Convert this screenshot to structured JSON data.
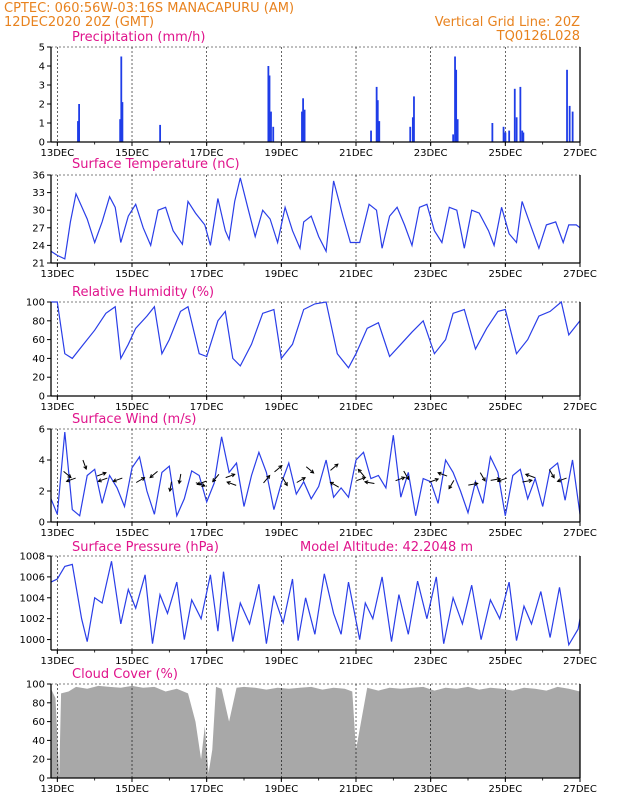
{
  "header": {
    "line1_left": "CPTEC:  060:56W-03:16S  MANACAPURU (AM)",
    "line2_left": "12DEC2020 20Z (GMT)",
    "line2_right": "Vertical Grid Line: 20Z",
    "line3_right": "TQ0126L028"
  },
  "colors": {
    "header": "#e8821e",
    "panel_title": "#e0148c",
    "series": "#2a3ee8",
    "cloud": "#a8a8a8"
  },
  "chart_data": [
    {
      "type": "bar",
      "title": "Precipitation (mm/h)",
      "ylim": [
        0,
        5
      ],
      "yticks": [
        0,
        1,
        2,
        3,
        4,
        5
      ],
      "xticks": [
        "13DEC",
        "15DEC",
        "17DEC",
        "19DEC",
        "21DEC",
        "23DEC",
        "25DEC",
        "27DEC"
      ],
      "x_start_day": 12.83,
      "x_end_day": 27.0,
      "values_hourly_note": "bars at day positions",
      "bars": [
        [
          13.55,
          1.1
        ],
        [
          13.58,
          2.0
        ],
        [
          14.68,
          1.2
        ],
        [
          14.71,
          4.5
        ],
        [
          14.74,
          2.1
        ],
        [
          15.75,
          0.9
        ],
        [
          18.65,
          4.0
        ],
        [
          18.68,
          3.5
        ],
        [
          18.72,
          1.6
        ],
        [
          18.78,
          0.8
        ],
        [
          19.55,
          1.6
        ],
        [
          19.58,
          2.3
        ],
        [
          19.62,
          1.7
        ],
        [
          21.4,
          0.6
        ],
        [
          21.55,
          2.9
        ],
        [
          21.58,
          2.2
        ],
        [
          21.62,
          1.1
        ],
        [
          22.45,
          0.8
        ],
        [
          22.52,
          1.3
        ],
        [
          22.55,
          2.4
        ],
        [
          23.6,
          0.4
        ],
        [
          23.65,
          4.5
        ],
        [
          23.68,
          3.8
        ],
        [
          23.72,
          1.2
        ],
        [
          24.65,
          1.0
        ],
        [
          24.95,
          0.8
        ],
        [
          25.0,
          0.5
        ],
        [
          25.1,
          0.6
        ],
        [
          25.25,
          2.8
        ],
        [
          25.3,
          1.3
        ],
        [
          25.4,
          2.9
        ],
        [
          25.45,
          0.6
        ],
        [
          25.48,
          0.5
        ],
        [
          26.65,
          3.8
        ],
        [
          26.72,
          1.9
        ],
        [
          26.8,
          1.6
        ]
      ]
    },
    {
      "type": "line",
      "title": "Surface Temperature (nC)",
      "ylim": [
        21,
        36
      ],
      "yticks": [
        21,
        24,
        27,
        30,
        33,
        36
      ],
      "xticks": [
        "13DEC",
        "15DEC",
        "17DEC",
        "19DEC",
        "21DEC",
        "23DEC",
        "25DEC",
        "27DEC"
      ],
      "x": [
        12.83,
        13.0,
        13.2,
        13.35,
        13.5,
        13.8,
        14.0,
        14.2,
        14.4,
        14.55,
        14.7,
        14.9,
        15.1,
        15.3,
        15.5,
        15.7,
        15.9,
        16.1,
        16.35,
        16.5,
        16.7,
        16.95,
        17.1,
        17.3,
        17.5,
        17.6,
        17.75,
        17.9,
        18.1,
        18.3,
        18.5,
        18.7,
        18.9,
        19.1,
        19.3,
        19.5,
        19.6,
        19.8,
        20.0,
        20.2,
        20.4,
        20.65,
        20.85,
        21.1,
        21.35,
        21.55,
        21.7,
        21.9,
        22.1,
        22.3,
        22.5,
        22.7,
        22.9,
        23.1,
        23.3,
        23.5,
        23.7,
        23.9,
        24.1,
        24.3,
        24.55,
        24.7,
        24.9,
        25.1,
        25.3,
        25.45,
        25.7,
        25.9,
        26.1,
        26.35,
        26.55,
        26.7,
        26.9,
        27.0
      ],
      "y": [
        23.0,
        22.3,
        21.7,
        28.0,
        32.8,
        28.5,
        24.5,
        28.0,
        32.3,
        30.5,
        24.5,
        29.0,
        31.0,
        27.0,
        24.0,
        30.0,
        30.5,
        26.5,
        24.2,
        31.5,
        29.5,
        27.5,
        24.0,
        32.0,
        26.5,
        25.0,
        31.5,
        35.5,
        30.5,
        25.5,
        30.0,
        28.5,
        24.5,
        30.5,
        26.5,
        23.5,
        28.0,
        29.0,
        25.5,
        23.0,
        35.0,
        29.0,
        24.5,
        24.5,
        31.0,
        30.0,
        23.5,
        29.0,
        30.5,
        27.5,
        24.0,
        30.5,
        31.0,
        26.5,
        24.5,
        30.5,
        30.0,
        23.5,
        30.0,
        29.5,
        26.5,
        24.0,
        30.5,
        26.0,
        24.5,
        31.5,
        27.0,
        23.5,
        27.5,
        28.0,
        24.5,
        27.5,
        27.5,
        27.0
      ]
    },
    {
      "type": "line",
      "title": "Relative Humidity (%)",
      "ylim": [
        0,
        100
      ],
      "yticks": [
        0,
        20,
        40,
        60,
        80,
        100
      ],
      "xticks": [
        "13DEC",
        "15DEC",
        "17DEC",
        "19DEC",
        "21DEC",
        "23DEC",
        "25DEC",
        "27DEC"
      ],
      "x": [
        12.83,
        13.0,
        13.2,
        13.4,
        13.7,
        14.0,
        14.3,
        14.55,
        14.7,
        14.9,
        15.1,
        15.4,
        15.6,
        15.8,
        16.0,
        16.3,
        16.5,
        16.8,
        17.0,
        17.3,
        17.5,
        17.7,
        17.9,
        18.2,
        18.5,
        18.8,
        19.0,
        19.3,
        19.6,
        19.9,
        20.2,
        20.5,
        20.8,
        21.0,
        21.3,
        21.6,
        21.9,
        22.2,
        22.5,
        22.8,
        23.1,
        23.4,
        23.6,
        23.9,
        24.2,
        24.5,
        24.8,
        25.0,
        25.3,
        25.6,
        25.9,
        26.2,
        26.5,
        26.7,
        27.0
      ],
      "y": [
        100,
        100,
        45,
        40,
        55,
        70,
        88,
        95,
        40,
        55,
        72,
        85,
        95,
        45,
        60,
        90,
        95,
        45,
        42,
        80,
        90,
        40,
        32,
        55,
        88,
        92,
        40,
        55,
        92,
        98,
        100,
        45,
        30,
        45,
        72,
        78,
        42,
        55,
        68,
        80,
        45,
        60,
        88,
        92,
        50,
        72,
        90,
        92,
        45,
        60,
        85,
        90,
        100,
        65,
        80
      ]
    },
    {
      "type": "line",
      "title": "Surface Wind (m/s)",
      "ylim": [
        0,
        6
      ],
      "yticks": [
        0,
        2,
        4,
        6
      ],
      "xticks": [
        "13DEC",
        "15DEC",
        "17DEC",
        "19DEC",
        "21DEC",
        "23DEC",
        "25DEC",
        "27DEC"
      ],
      "x": [
        12.83,
        13.0,
        13.2,
        13.4,
        13.6,
        13.8,
        14.0,
        14.2,
        14.4,
        14.6,
        14.8,
        15.0,
        15.2,
        15.4,
        15.6,
        15.8,
        16.0,
        16.2,
        16.4,
        16.6,
        16.8,
        17.0,
        17.2,
        17.4,
        17.6,
        17.8,
        18.0,
        18.2,
        18.4,
        18.6,
        18.8,
        19.0,
        19.2,
        19.4,
        19.6,
        19.8,
        20.0,
        20.2,
        20.4,
        20.6,
        20.8,
        21.0,
        21.2,
        21.4,
        21.6,
        21.8,
        22.0,
        22.2,
        22.4,
        22.6,
        22.8,
        23.0,
        23.2,
        23.4,
        23.6,
        23.8,
        24.0,
        24.2,
        24.4,
        24.6,
        24.8,
        25.0,
        25.2,
        25.4,
        25.6,
        25.8,
        26.0,
        26.2,
        26.4,
        26.6,
        26.8,
        27.0
      ],
      "y": [
        1.5,
        0.5,
        5.8,
        0.8,
        0.4,
        3.0,
        3.4,
        1.2,
        3.0,
        2.2,
        1.0,
        3.5,
        4.2,
        2.0,
        0.5,
        3.2,
        3.6,
        0.4,
        1.5,
        3.3,
        3.0,
        1.3,
        2.5,
        5.5,
        3.2,
        3.8,
        1.0,
        3.0,
        4.5,
        3.2,
        0.8,
        2.5,
        3.8,
        1.8,
        2.6,
        1.5,
        2.3,
        4.0,
        1.6,
        2.2,
        1.6,
        4.0,
        4.5,
        2.8,
        3.0,
        2.2,
        5.6,
        1.6,
        3.2,
        0.4,
        2.8,
        2.6,
        1.2,
        4.0,
        3.2,
        2.0,
        0.6,
        2.6,
        1.2,
        4.2,
        3.2,
        0.4,
        3.0,
        3.4,
        1.5,
        2.8,
        1.0,
        3.4,
        3.8,
        1.4,
        4.0,
        0.5
      ],
      "wind_arrows_note": "direction arrows every ~12h",
      "arrows": [
        [
          13.2,
          3.2,
          -40
        ],
        [
          13.45,
          2.8,
          200
        ],
        [
          13.7,
          3.9,
          -70
        ],
        [
          14.1,
          3.0,
          20
        ],
        [
          14.3,
          2.8,
          -160
        ],
        [
          14.7,
          2.8,
          200
        ],
        [
          15.15,
          2.6,
          30
        ],
        [
          15.65,
          3.2,
          -140
        ],
        [
          16.05,
          2.5,
          -100
        ],
        [
          16.3,
          3.0,
          -100
        ],
        [
          16.75,
          2.5,
          -20
        ],
        [
          16.95,
          2.6,
          200
        ],
        [
          17.3,
          3.0,
          -130
        ],
        [
          17.55,
          2.9,
          20
        ],
        [
          17.75,
          2.4,
          -200
        ],
        [
          18.55,
          2.6,
          50
        ],
        [
          18.85,
          3.3,
          40
        ],
        [
          19.05,
          2.8,
          -60
        ],
        [
          19.45,
          2.6,
          30
        ],
        [
          19.7,
          3.5,
          -40
        ],
        [
          20.35,
          3.4,
          40
        ],
        [
          20.5,
          2.3,
          150
        ],
        [
          21.05,
          2.7,
          20
        ],
        [
          21.2,
          3.0,
          130
        ],
        [
          21.45,
          2.5,
          170
        ],
        [
          22.1,
          2.7,
          20
        ],
        [
          22.3,
          3.2,
          -60
        ],
        [
          23.0,
          2.6,
          20
        ],
        [
          23.4,
          3.0,
          160
        ],
        [
          23.6,
          2.6,
          -120
        ],
        [
          24.05,
          2.4,
          10
        ],
        [
          24.35,
          3.1,
          -60
        ],
        [
          24.65,
          2.7,
          10
        ],
        [
          25.0,
          2.8,
          200
        ],
        [
          25.5,
          2.6,
          10
        ],
        [
          25.75,
          2.9,
          160
        ],
        [
          26.2,
          3.3,
          -60
        ],
        [
          26.6,
          2.8,
          200
        ]
      ]
    },
    {
      "type": "line",
      "title": "Surface Pressure (hPa)",
      "annotation": "Model Altitude: 42.2048 m",
      "ylim": [
        999,
        1008
      ],
      "yticks": [
        1000,
        1002,
        1004,
        1006,
        1008
      ],
      "xticks": [
        "13DEC",
        "15DEC",
        "17DEC",
        "19DEC",
        "21DEC",
        "23DEC",
        "25DEC",
        "27DEC"
      ],
      "x": [
        12.83,
        13.0,
        13.2,
        13.4,
        13.65,
        13.8,
        14.0,
        14.2,
        14.45,
        14.7,
        14.9,
        15.1,
        15.35,
        15.55,
        15.75,
        15.95,
        16.2,
        16.4,
        16.6,
        16.85,
        17.1,
        17.3,
        17.45,
        17.7,
        17.9,
        18.15,
        18.4,
        18.6,
        18.8,
        19.05,
        19.3,
        19.45,
        19.65,
        19.9,
        20.15,
        20.4,
        20.6,
        20.8,
        21.1,
        21.25,
        21.45,
        21.7,
        21.95,
        22.15,
        22.4,
        22.65,
        22.9,
        23.15,
        23.35,
        23.6,
        23.85,
        24.1,
        24.35,
        24.6,
        24.85,
        25.1,
        25.3,
        25.5,
        25.7,
        25.95,
        26.2,
        26.45,
        26.7,
        26.95,
        27.0
      ],
      "y": [
        1005.5,
        1005.8,
        1007.0,
        1007.2,
        1002.0,
        999.8,
        1004.0,
        1003.5,
        1007.5,
        1001.5,
        1004.8,
        1003.0,
        1006.2,
        999.6,
        1004.3,
        1002.5,
        1005.5,
        1000.0,
        1003.8,
        1002.0,
        1006.2,
        1000.8,
        1006.5,
        999.8,
        1003.5,
        1001.5,
        1005.3,
        999.6,
        1004.2,
        1001.6,
        1005.8,
        999.9,
        1004.0,
        1000.5,
        1006.3,
        1002.5,
        1000.5,
        1005.5,
        1000.0,
        1003.5,
        1002.0,
        1006.0,
        999.8,
        1004.3,
        1000.5,
        1005.6,
        1002.0,
        1006.0,
        999.6,
        1004.0,
        1001.5,
        1005.2,
        1000.0,
        1003.8,
        1002.0,
        1005.5,
        999.9,
        1003.2,
        1001.5,
        1004.6,
        1000.2,
        1005.0,
        999.5,
        1001.0,
        1002.0
      ]
    },
    {
      "type": "area",
      "title": "Cloud Cover (%)",
      "ylim": [
        0,
        100
      ],
      "yticks": [
        0,
        20,
        40,
        60,
        80,
        100
      ],
      "xticks": [
        "13DEC",
        "15DEC",
        "17DEC",
        "19DEC",
        "21DEC",
        "23DEC",
        "25DEC",
        "27DEC"
      ],
      "x": [
        12.83,
        12.95,
        13.05,
        13.1,
        13.3,
        13.5,
        13.8,
        14.1,
        14.4,
        14.7,
        15.0,
        15.3,
        15.6,
        15.9,
        16.2,
        16.5,
        16.7,
        16.85,
        16.95,
        17.05,
        17.15,
        17.25,
        17.4,
        17.6,
        17.8,
        18.0,
        18.3,
        18.6,
        18.9,
        19.2,
        19.5,
        19.8,
        20.1,
        20.4,
        20.7,
        20.9,
        21.0,
        21.3,
        21.6,
        21.9,
        22.2,
        22.5,
        22.8,
        23.1,
        23.4,
        23.7,
        24.0,
        24.3,
        24.6,
        24.9,
        25.2,
        25.5,
        25.8,
        26.1,
        26.4,
        26.7,
        27.0
      ],
      "y": [
        95,
        85,
        2,
        90,
        92,
        97,
        95,
        98,
        97,
        96,
        98,
        96,
        97,
        92,
        95,
        90,
        60,
        20,
        55,
        5,
        30,
        97,
        95,
        60,
        96,
        97,
        96,
        94,
        96,
        95,
        96,
        97,
        94,
        96,
        95,
        92,
        30,
        96,
        93,
        96,
        95,
        96,
        97,
        93,
        96,
        95,
        97,
        94,
        96,
        95,
        93,
        96,
        95,
        93,
        97,
        95,
        92
      ]
    }
  ],
  "panel_labels": {
    "p0": "Precipitation (mm/h)",
    "p1": "Surface Temperature (nC)",
    "p2": "Relative Humidity (%)",
    "p3": "Surface Wind (m/s)",
    "p4": "Surface Pressure (hPa)",
    "p4_extra": "Model Altitude: 42.2048 m",
    "p5": "Cloud Cover (%)"
  }
}
